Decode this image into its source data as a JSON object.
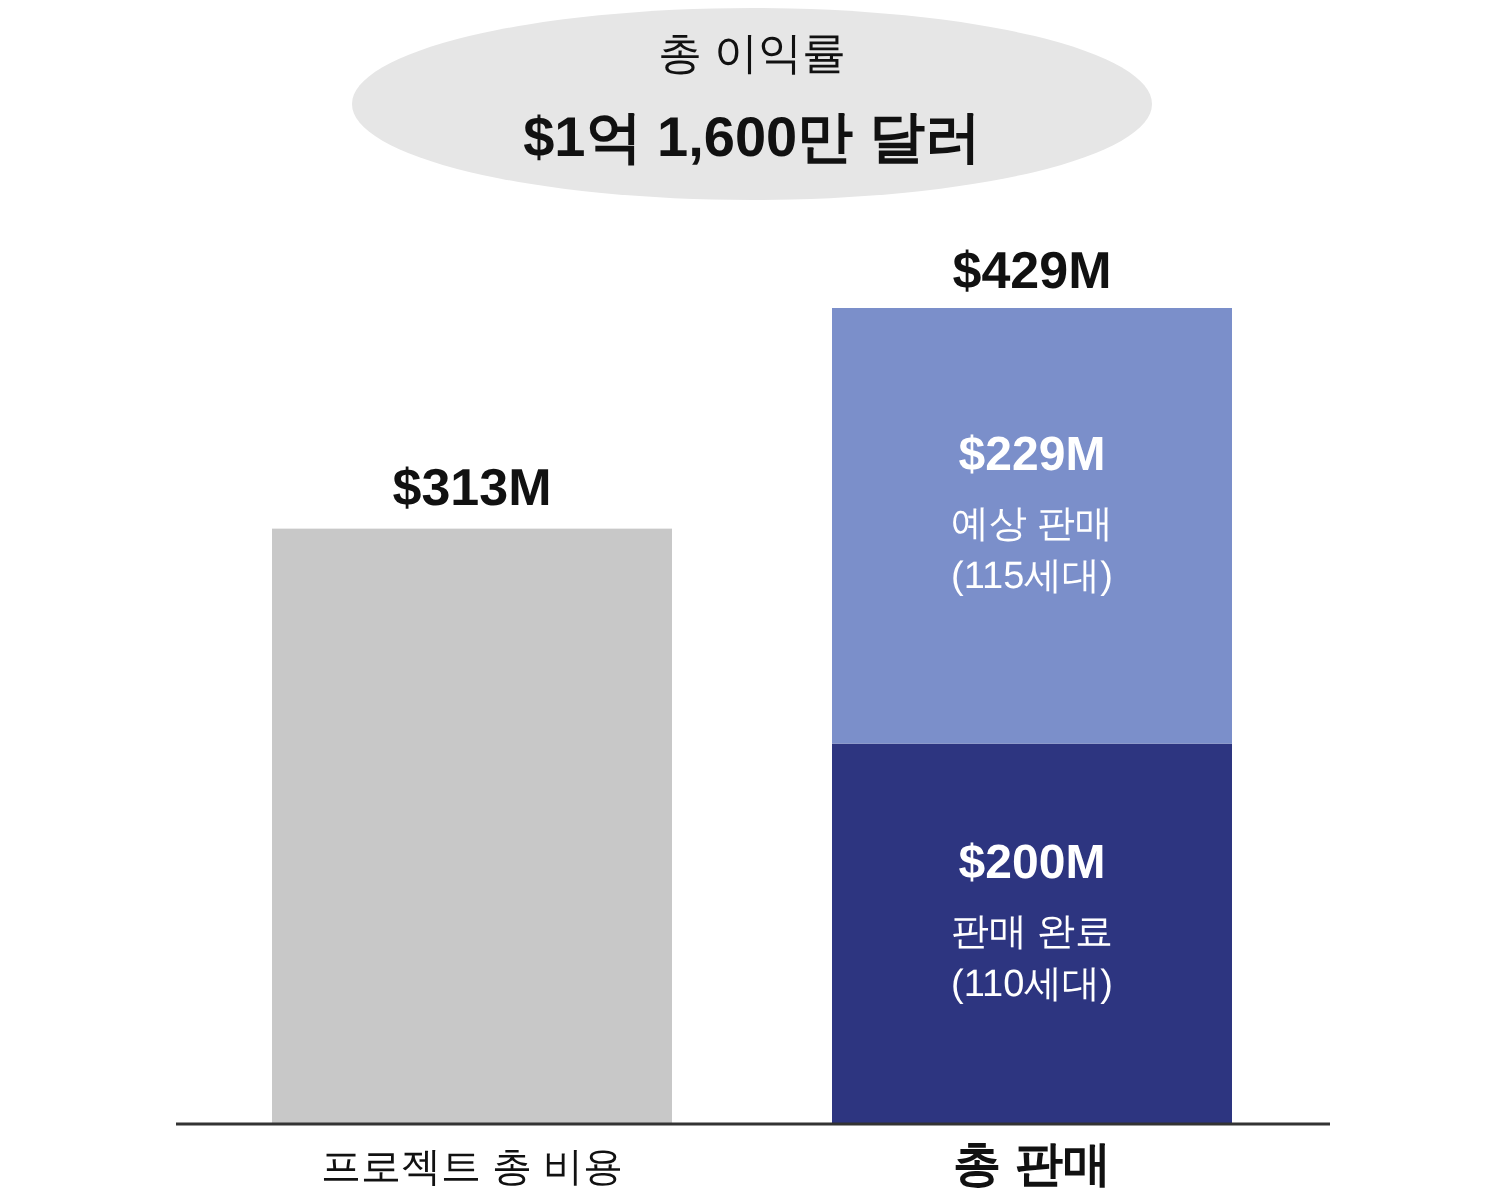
{
  "chart_data": {
    "type": "bar",
    "stacked": true,
    "title": "총 이익률",
    "subtitle": "$1억 1,600만 달러",
    "categories": [
      "프로젝트 총 비용",
      "총 판매"
    ],
    "series": [
      {
        "color": "#c8c8c8",
        "values": [
          313,
          null
        ],
        "value_labels": [
          "$313M",
          null
        ]
      },
      {
        "name": "판매 완료 (110세대)",
        "color": "#2d3580",
        "values": [
          null,
          200
        ],
        "value_labels": [
          null,
          "$200M"
        ]
      },
      {
        "name": "예상 판매 (115세대)",
        "color": "#7b8fca",
        "values": [
          null,
          229
        ],
        "value_labels": [
          null,
          "$229M"
        ]
      }
    ],
    "totals": [
      null,
      "$429M"
    ]
  }
}
